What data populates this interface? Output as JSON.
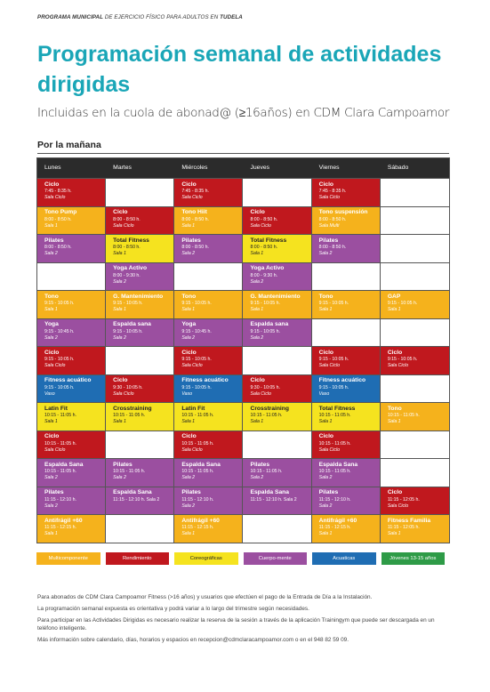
{
  "header": {
    "prefix": "PROGRAMA MUNICIPAL",
    "middle": "DE EJERCICIO FÍSICO PARA ADULTOS EN",
    "suffix": "TUDELA",
    "title": "Programación semanal de actividades dirigidas",
    "subtitle": "Incluidas en la cuola de abonad@ (≥16años) en CDM Clara Campoamor"
  },
  "section_label": "Por la mañana",
  "colors": {
    "multicomponente": "#f5b21c",
    "rendimiento": "#c0181e",
    "coreograficas": "#f5e31f",
    "cuerpo_mente": "#9b4fa0",
    "acuaticas": "#1f6db3",
    "jovenes": "#2e9b47"
  },
  "days": [
    "Lunes",
    "Martes",
    "Miércoles",
    "Jueves",
    "Viernes",
    "Sábado"
  ],
  "rows": [
    [
      {
        "name": "Ciclo",
        "time": "7:45 - 8:35 h.",
        "room": "Sala Ciclo",
        "cat": "rendimiento"
      },
      null,
      {
        "name": "Ciclo",
        "time": "7:45 - 8:35 h.",
        "room": "Sala Ciclo",
        "cat": "rendimiento"
      },
      null,
      {
        "name": "Ciclo",
        "time": "7:45 - 8:35 h.",
        "room": "Sala Ciclo",
        "cat": "rendimiento"
      },
      null
    ],
    [
      {
        "name": "Tono Pump",
        "time": "8:00 - 8:50 h.",
        "room": "Sala 1",
        "cat": "multicomponente"
      },
      {
        "name": "Ciclo",
        "time": "8:00 - 8:50 h.",
        "room": "Sala Ciclo",
        "cat": "rendimiento"
      },
      {
        "name": "Tono Hiit",
        "time": "8:00 - 8:50 h.",
        "room": "Sala 1",
        "cat": "multicomponente"
      },
      {
        "name": "Ciclo",
        "time": "8:00 - 8:50 h.",
        "room": "Sala Ciclo",
        "cat": "rendimiento"
      },
      {
        "name": "Tono suspensión",
        "time": "8:00 - 8:50 h.",
        "room": "Sala Multi",
        "cat": "multicomponente"
      },
      null
    ],
    [
      {
        "name": "Pilates",
        "time": "8:00 - 8:50 h.",
        "room": "Sala 2",
        "cat": "cuerpo_mente"
      },
      {
        "name": "Total Fitness",
        "time": "8:00 - 8:50 h.",
        "room": "Sala 1",
        "cat": "coreograficas"
      },
      {
        "name": "Pilates",
        "time": "8:00 - 8:50 h.",
        "room": "Sala 2",
        "cat": "cuerpo_mente"
      },
      {
        "name": "Total Fitness",
        "time": "8:00 - 8:50 h.",
        "room": "Sala 1",
        "cat": "coreograficas"
      },
      {
        "name": "Pilates",
        "time": "8:00 - 8:50 h.",
        "room": "Sala 2",
        "cat": "cuerpo_mente"
      },
      null
    ],
    [
      null,
      {
        "name": "Yoga Activo",
        "time": "8:00 - 9:30 h.",
        "room": "Sala 2",
        "cat": "cuerpo_mente"
      },
      null,
      {
        "name": "Yoga Activo",
        "time": "8:00 - 9:30 h.",
        "room": "Sala 2",
        "cat": "cuerpo_mente"
      },
      null,
      null
    ],
    [
      {
        "name": "Tono",
        "time": "9:15 - 10:05 h.",
        "room": "Sala 1",
        "cat": "multicomponente"
      },
      {
        "name": "G. Mantenimiento",
        "time": "9:15 - 10:05 h.",
        "room": "Sala 1",
        "cat": "multicomponente"
      },
      {
        "name": "Tono",
        "time": "9:15 - 10:05 h.",
        "room": "Sala 1",
        "cat": "multicomponente"
      },
      {
        "name": "G. Mantenimiento",
        "time": "9:15 - 10:05 h.",
        "room": "Sala 1",
        "cat": "multicomponente"
      },
      {
        "name": "Tono",
        "time": "9:15 - 10:05 h.",
        "room": "Sala 1",
        "cat": "multicomponente"
      },
      {
        "name": "GAP",
        "time": "9:15 - 10:05 h.",
        "room": "Sala 1",
        "cat": "multicomponente"
      }
    ],
    [
      {
        "name": "Yoga",
        "time": "9:15 - 10:45 h.",
        "room": "Sala 2",
        "cat": "cuerpo_mente"
      },
      {
        "name": "Espalda sana",
        "time": "9:15 - 10:05 h.",
        "room": "Sala 2",
        "cat": "cuerpo_mente"
      },
      {
        "name": "Yoga",
        "time": "9:15 - 10:45 h.",
        "room": "Sala 2",
        "cat": "cuerpo_mente"
      },
      {
        "name": "Espalda sana",
        "time": "9:15 - 10:05 h.",
        "room": "Sala 2",
        "cat": "cuerpo_mente"
      },
      null,
      null
    ],
    [
      {
        "name": "Ciclo",
        "time": "9:15 - 10:05 h.",
        "room": "Sala Ciclo",
        "cat": "rendimiento"
      },
      null,
      {
        "name": "Ciclo",
        "time": "9:15 - 10:05 h.",
        "room": "Sala Ciclo",
        "cat": "rendimiento"
      },
      null,
      {
        "name": "Ciclo",
        "time": "9:15 - 10:05 h.",
        "room": "Sala Ciclo",
        "cat": "rendimiento"
      },
      {
        "name": "Ciclo",
        "time": "9:15 - 10:05 h.",
        "room": "Sala Ciclo",
        "cat": "rendimiento"
      }
    ],
    [
      {
        "name": "Fitness acuático",
        "time": "9:15 - 10:05 h.",
        "room": "Vaso",
        "cat": "acuaticas"
      },
      {
        "name": "Ciclo",
        "time": "9:30 - 10:05 h.",
        "room": "Sala Ciclo",
        "cat": "rendimiento"
      },
      {
        "name": "Fitness acuático",
        "time": "9:15 - 10:05 h.",
        "room": "Vaso",
        "cat": "acuaticas"
      },
      {
        "name": "Ciclo",
        "time": "9:30 - 10:05 h.",
        "room": "Sala Ciclo",
        "cat": "rendimiento"
      },
      {
        "name": "Fitness acuático",
        "time": "9:15 - 10:05 h.",
        "room": "Vaso",
        "cat": "acuaticas"
      },
      null
    ],
    [
      {
        "name": "Latin Fit",
        "time": "10:15 - 11:05 h.",
        "room": "Sala 1",
        "cat": "coreograficas"
      },
      {
        "name": "Crosstraining",
        "time": "10:15 - 11:05 h.",
        "room": "Sala 1",
        "cat": "coreograficas"
      },
      {
        "name": "Latin Fit",
        "time": "10:15 - 11:05 h.",
        "room": "Sala 1",
        "cat": "coreograficas"
      },
      {
        "name": "Crosstraining",
        "time": "10:15 - 11:05 h.",
        "room": "Sala 1",
        "cat": "coreograficas"
      },
      {
        "name": "Total Fitness",
        "time": "10:15 - 11:05 h.",
        "room": "Sala 1",
        "cat": "coreograficas"
      },
      {
        "name": "Tono",
        "time": "10:15 - 11:05 h.",
        "room": "Sala 1",
        "cat": "multicomponente"
      }
    ],
    [
      {
        "name": "Ciclo",
        "time": "10:15 - 11:05 h.",
        "room": "Sala Ciclo",
        "cat": "rendimiento"
      },
      null,
      {
        "name": "Ciclo",
        "time": "10:15 - 11:05 h.",
        "room": "Sala Ciclo",
        "cat": "rendimiento"
      },
      null,
      {
        "name": "Ciclo",
        "time": "10:15 - 11:05 h.",
        "room": "Sala Ciclo",
        "cat": "rendimiento"
      },
      null
    ],
    [
      {
        "name": "Espalda Sana",
        "time": "10:15 - 11:05 h.",
        "room": "Sala 2",
        "cat": "cuerpo_mente"
      },
      {
        "name": "Pilates",
        "time": "10:15 - 11:05 h.",
        "room": "Sala 2",
        "cat": "cuerpo_mente"
      },
      {
        "name": "Espalda Sana",
        "time": "10:15 - 11:05 h.",
        "room": "Sala 2",
        "cat": "cuerpo_mente"
      },
      {
        "name": "Pilates",
        "time": "10:15 - 11:05 h.",
        "room": "Sala 2",
        "cat": "cuerpo_mente"
      },
      {
        "name": "Espalda Sana",
        "time": "10:15 - 11:05 h.",
        "room": "Sala 2",
        "cat": "cuerpo_mente"
      },
      null
    ],
    [
      {
        "name": "Pilates",
        "time": "11:15 - 12:10 h.",
        "room": "Sala 2",
        "cat": "cuerpo_mente"
      },
      {
        "name": "Espalda Sana",
        "time": "11:15 - 12:10 h. Sala 2",
        "room": "",
        "cat": "cuerpo_mente"
      },
      {
        "name": "Pilates",
        "time": "11:15 - 12:10 h.",
        "room": "Sala 2",
        "cat": "cuerpo_mente"
      },
      {
        "name": "Espalda Sana",
        "time": "11:15 - 12:10 h. Sala 2",
        "room": "",
        "cat": "cuerpo_mente"
      },
      {
        "name": "Pilates",
        "time": "11:15 - 12:10 h.",
        "room": "Sala 2",
        "cat": "cuerpo_mente"
      },
      {
        "name": "Ciclo",
        "time": "11:15 - 12:05 h.",
        "room": "Sala Ciclo",
        "cat": "rendimiento"
      }
    ],
    [
      {
        "name": "Antifrágil +60",
        "time": "11:15 - 12:15 h.",
        "room": "Sala 1",
        "cat": "multicomponente"
      },
      null,
      {
        "name": "Antifrágil +60",
        "time": "11:15 - 12:15 h.",
        "room": "Sala 1",
        "cat": "multicomponente"
      },
      null,
      {
        "name": "Antifrágil +60",
        "time": "11:15 - 12:15 h.",
        "room": "Sala 1",
        "cat": "multicomponente"
      },
      {
        "name": "Fitness Familia",
        "time": "11:15 - 12:05 h.",
        "room": "Sala 1",
        "cat": "multicomponente"
      }
    ]
  ],
  "legend": [
    {
      "label": "Multicomponente",
      "cat": "multicomponente"
    },
    {
      "label": "Rendimiento",
      "cat": "rendimiento"
    },
    {
      "label": "Coreográficas",
      "cat": "coreograficas"
    },
    {
      "label": "Cuerpo-mente",
      "cat": "cuerpo_mente"
    },
    {
      "label": "Acuaticas",
      "cat": "acuaticas"
    },
    {
      "label": "Jóvenes 13-15 años",
      "cat": "jovenes"
    }
  ],
  "footer": [
    "Para abonados de CDM Clara Campoamor Fitness (>16 años) y usuarios que efectúen el pago de la Entrada de Día a la Instalación.",
    "La programación semanal expuesta es orientativa y podrá variar a lo largo del trimestre según necesidades.",
    "Para participar en las Actividades Dirigidas es necesario realizar la reserva de la sesión a través de la aplicación Trainingym que puede ser descargada en un teléfono inteligente.",
    "Más información sobre calendario, días, horarios y espacios en recepcion@cdmclaracampoamor.com o en el 948 82 59 09."
  ]
}
